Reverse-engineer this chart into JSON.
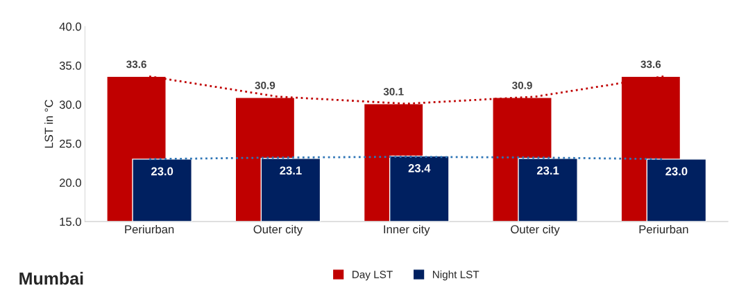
{
  "chart_data": {
    "type": "bar",
    "title": "Mumbai",
    "ylabel": "LST in °C",
    "categories": [
      "Periurban",
      "Outer city",
      "Inner city",
      "Outer city",
      "Periurban"
    ],
    "series": [
      {
        "name": "Day LST",
        "color": "#c00000",
        "values": [
          33.6,
          30.9,
          30.1,
          30.9,
          33.6
        ],
        "value_labels": [
          "33.6",
          "30.9",
          "30.1",
          "30.9",
          "33.6"
        ]
      },
      {
        "name": "Night LST",
        "color": "#002060",
        "values": [
          23.0,
          23.1,
          23.4,
          23.1,
          23.0
        ],
        "value_labels": [
          "23.0",
          "23.1",
          "23.4",
          "23.1",
          "23.0"
        ]
      },
      {
        "type": "line",
        "color": "#c00000",
        "line_style": "dotted",
        "values": [
          33.6,
          31.0,
          30.1,
          31.0,
          33.6
        ]
      },
      {
        "type": "line",
        "color": "#2e75b6",
        "line_style": "dotted",
        "values": [
          23.0,
          23.2,
          23.3,
          23.2,
          23.0
        ]
      }
    ],
    "ylim": [
      15,
      40
    ],
    "yticks": [
      {
        "value": 15,
        "label": "15.0"
      },
      {
        "value": 20,
        "label": "20.0"
      },
      {
        "value": 25,
        "label": "25.0"
      },
      {
        "value": 30,
        "label": "30.0"
      },
      {
        "value": 35,
        "label": "35.0"
      },
      {
        "value": 40,
        "label": "40.0"
      }
    ],
    "grid": false,
    "legend": "bottom"
  }
}
